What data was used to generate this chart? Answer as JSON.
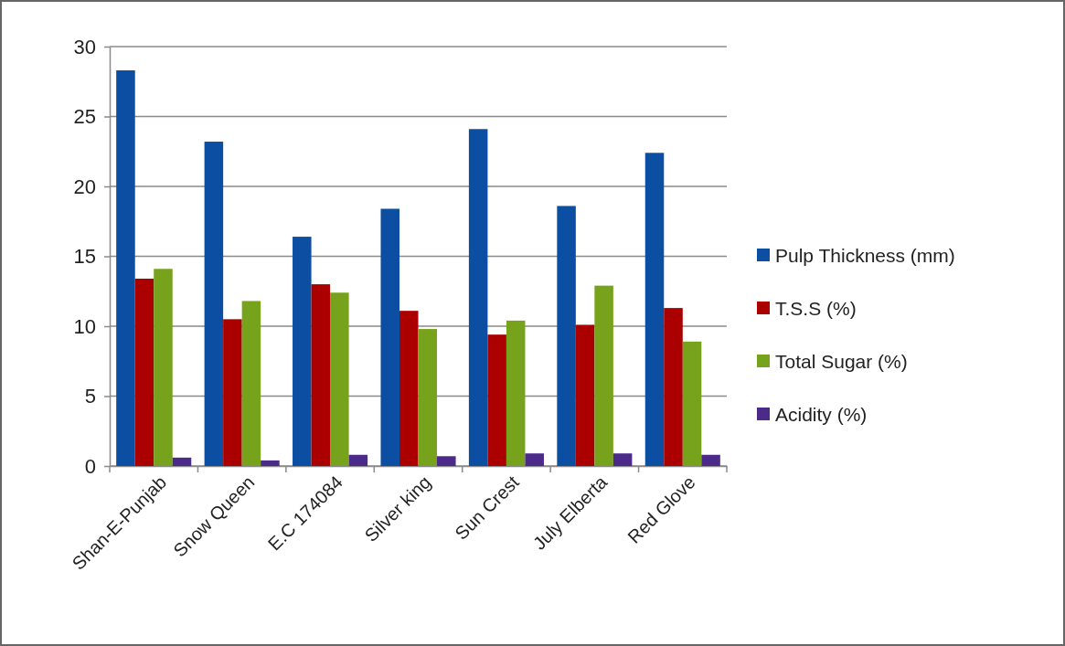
{
  "chart_data": {
    "type": "bar",
    "categories": [
      "Shan-E-Punjab",
      "Snow Queen",
      "E.C 174084",
      "Silver king",
      "Sun Crest",
      "July Elberta",
      "Red Glove"
    ],
    "series": [
      {
        "name": "Pulp Thickness (mm)",
        "color": "#0b4ea2",
        "values": [
          28.3,
          23.2,
          16.4,
          18.4,
          24.1,
          18.6,
          22.4
        ]
      },
      {
        "name": "T.S.S (%)",
        "color": "#aa0000",
        "values": [
          13.4,
          10.5,
          13.0,
          11.1,
          9.4,
          10.1,
          11.3
        ]
      },
      {
        "name": "Total Sugar (%)",
        "color": "#77a21c",
        "values": [
          14.1,
          11.8,
          12.4,
          9.8,
          10.4,
          12.9,
          8.9
        ]
      },
      {
        "name": "Acidity (%)",
        "color": "#4b2a8a",
        "values": [
          0.6,
          0.4,
          0.8,
          0.7,
          0.9,
          0.9,
          0.8
        ]
      }
    ],
    "ylim": [
      0,
      30
    ],
    "yticks": [
      0,
      5,
      10,
      15,
      20,
      25,
      30
    ],
    "grid": "y",
    "legend": "right"
  }
}
